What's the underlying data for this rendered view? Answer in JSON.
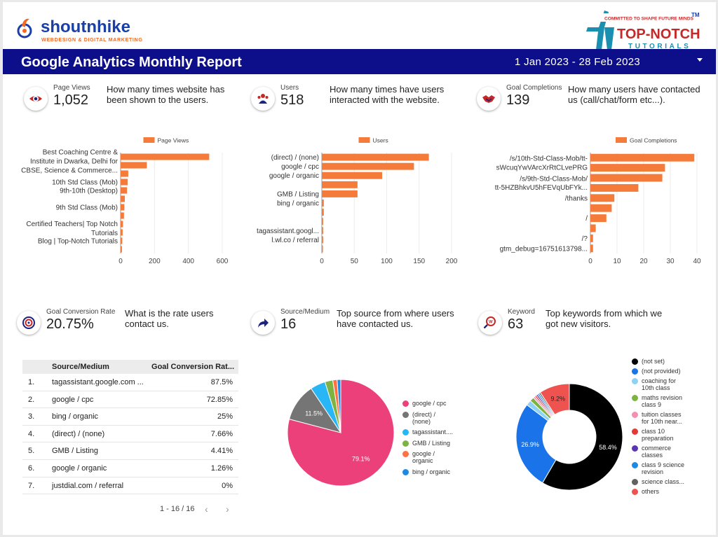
{
  "header": {
    "brand_left": "shoutnhike",
    "brand_left_tagline": "WEBDESIGN & DIGITAL MARKETING",
    "brand_right_tagline": "COMMITTED TO SHAPE FUTURE MINDS",
    "brand_right_tm": "TM",
    "brand_right_name": "TOP-NOTCH",
    "brand_right_sub": "TUTORIALS",
    "title": "Google Analytics Monthly Report",
    "date_range": "1 Jan 2023 - 28 Feb 2023"
  },
  "kpis": [
    {
      "label": "Page Views",
      "value": "1,052",
      "desc1": "How many times website has",
      "desc2": "been shown to the users.",
      "icon": "eye-icon"
    },
    {
      "label": "Users",
      "value": "518",
      "desc1": "How many times have users",
      "desc2": "interacted with the website.",
      "icon": "users-icon"
    },
    {
      "label": "Goal Completions",
      "value": "139",
      "desc1": "How many users have contacted",
      "desc2": "us (call/chat/form etc...).",
      "icon": "handshake-icon"
    },
    {
      "label": "Goal Conversion Rate",
      "value": "20.75%",
      "desc1": "What is the rate users",
      "desc2": "contact us.",
      "icon": "target-icon"
    },
    {
      "label": "Source/Medium",
      "value": "16",
      "desc1": "Top source from where users",
      "desc2": "have contacted us.",
      "icon": "share-arrow-icon"
    },
    {
      "label": "Keyword",
      "value": "63",
      "desc1": "Top keywords from which we",
      "desc2": "got new visitors.",
      "icon": "keyword-search-icon"
    }
  ],
  "colors": {
    "title_bar": "#0d0f8a",
    "bar": "#f47b3a",
    "brand_blue": "#1a3fa6",
    "brand_orange": "#f26a21"
  },
  "table": {
    "headers": [
      "Source/Medium",
      "Goal Conversion Rat..."
    ],
    "rows": [
      {
        "idx": "1.",
        "source": "tagassistant.google.com ...",
        "value": "87.5%"
      },
      {
        "idx": "2.",
        "source": "google / cpc",
        "value": "72.85%"
      },
      {
        "idx": "3.",
        "source": "bing / organic",
        "value": "25%"
      },
      {
        "idx": "4.",
        "source": "(direct) / (none)",
        "value": "7.66%"
      },
      {
        "idx": "5.",
        "source": "GMB / Listing",
        "value": "4.41%"
      },
      {
        "idx": "6.",
        "source": "google / organic",
        "value": "1.26%"
      },
      {
        "idx": "7.",
        "source": "justdial.com / referral",
        "value": "0%"
      }
    ],
    "pagination": "1 - 16 / 16",
    "prev": "‹",
    "next": "›"
  },
  "chart_data": [
    {
      "type": "bar",
      "orientation": "horizontal",
      "legend": "Page Views",
      "legend_position": "top",
      "categories": [
        "Best Coaching Centre & Institute in Dwarka, Delhi for CBSE, Science & Commerce...",
        "",
        "",
        "10th Std Class (Mob)",
        "9th-10th (Desktop)",
        "",
        "9th Std Class (Mob)",
        "",
        "Certified Teachers| Top Notch Tutorials",
        "",
        "Blog | Top-Notch Tutorials",
        ""
      ],
      "label_lines": [
        [
          "Best Coaching Centre &",
          0.0
        ],
        [
          "Institute in Dwarka, Delhi for",
          0.0
        ],
        [
          "CBSE, Science & Commerce...",
          0.0
        ],
        [
          "10th Std Class (Mob)",
          3.0
        ],
        [
          "9th-10th (Desktop)",
          4.0
        ],
        [
          "9th Std Class (Mob)",
          6.0
        ],
        [
          "Certified Teachers| Top Notch",
          8.0
        ],
        [
          "Tutorials",
          8.0
        ],
        [
          "Blog | Top-Notch Tutorials",
          10.0
        ]
      ],
      "values": [
        523,
        155,
        45,
        42,
        38,
        25,
        22,
        20,
        14,
        12,
        10,
        8
      ],
      "xlim": [
        0,
        600
      ],
      "xticks": [
        "0",
        "200",
        "400",
        "600"
      ],
      "grid": true
    },
    {
      "type": "bar",
      "orientation": "horizontal",
      "legend": "Users",
      "legend_position": "top",
      "categories": [
        "(direct) / (none)",
        "google / cpc",
        "google / organic",
        "",
        "GMB / Listing",
        "bing / organic",
        "",
        "",
        "tagassistant.googl...",
        "l.wl.co / referral",
        ""
      ],
      "values": [
        165,
        142,
        93,
        55,
        55,
        3,
        3,
        2,
        2,
        2,
        1
      ],
      "xlim": [
        0,
        200
      ],
      "xticks": [
        "0",
        "50",
        "100",
        "150",
        "200"
      ],
      "grid": true
    },
    {
      "type": "bar",
      "orientation": "horizontal",
      "legend": "Goal Completions",
      "legend_position": "top",
      "categories": [
        "/s/10th-Std-Class-Mob/tt-sWcuqYwVArcXrRtCLvePRG",
        "/s/9th-Std-Class-Mob/tt-5HZBhkvU5hFEVqUbFYk...",
        "",
        "",
        "/thanks",
        "",
        "/",
        "",
        "/?",
        "gtm_debug=16751613798..."
      ],
      "label_lines": [
        [
          "/s/10th-Std-Class-Mob/tt-",
          0.0
        ],
        [
          "sWcuqYwVArcXrRtCLvePRG",
          0.0
        ],
        [
          "/s/9th-Std-Class-Mob/",
          2.0
        ],
        [
          "tt-5HZBhkvU5hFEVqUbFYk...",
          2.0
        ],
        [
          "/thanks",
          4.0
        ],
        [
          "/",
          6.0
        ],
        [
          "/?",
          8.0
        ],
        [
          "gtm_debug=16751613798...",
          9.0
        ]
      ],
      "values": [
        39,
        28,
        27,
        18,
        9,
        8,
        6,
        2,
        1,
        1
      ],
      "xlim": [
        0,
        40
      ],
      "xticks": [
        "0",
        "10",
        "20",
        "30",
        "40"
      ],
      "grid": true
    },
    {
      "type": "pie",
      "labels": [
        "google / cpc",
        "(direct) / (none)",
        "tagassistant....",
        "GMB / Listing",
        "google / organic",
        "bing / organic"
      ],
      "legend_lines": [
        [
          "google / cpc"
        ],
        [
          "(direct) /",
          "(none)"
        ],
        [
          "tagassistant...."
        ],
        [
          "GMB / Listing"
        ],
        [
          "google /",
          "organic"
        ],
        [
          "bing / organic"
        ]
      ],
      "values": [
        79.1,
        11.5,
        4.6,
        2.4,
        1.3,
        1.1
      ],
      "slice_labels": [
        "79.1%",
        "11.5%",
        "",
        "",
        "",
        ""
      ],
      "colors": [
        "#ec407a",
        "#757575",
        "#29b6f6",
        "#7cb342",
        "#ff7043",
        "#1e88e5"
      ],
      "start_angle": 0
    },
    {
      "type": "pie",
      "donut": true,
      "labels": [
        "(not set)",
        "(not provided)",
        "coaching for 10th class",
        "maths revision class 9",
        "tuition classes for 10th near...",
        "class 10 preparation",
        "commerce classes",
        "class 9 science revision",
        "science class...",
        "others"
      ],
      "legend_lines": [
        [
          "(not set)"
        ],
        [
          "(not provided)"
        ],
        [
          "coaching for",
          "10th class"
        ],
        [
          "maths revision",
          "class 9"
        ],
        [
          "tuition classes",
          "for 10th near..."
        ],
        [
          "class 10",
          "preparation"
        ],
        [
          "commerce",
          "classes"
        ],
        [
          "class 9 science",
          "revision"
        ],
        [
          "science class..."
        ],
        [
          "others"
        ]
      ],
      "values": [
        58.4,
        26.9,
        1.6,
        1.3,
        0.6,
        0.5,
        0.5,
        0.5,
        0.5,
        9.2
      ],
      "slice_labels": [
        "58.4%",
        "26.9%",
        "",
        "",
        "",
        "",
        "",
        "",
        "",
        "9.2%"
      ],
      "colors": [
        "#000000",
        "#1a73e8",
        "#8fd3f4",
        "#7cb342",
        "#f48fb1",
        "#e53935",
        "#5e35b1",
        "#1e88e5",
        "#616161",
        "#ef5350"
      ],
      "start_angle": 0
    }
  ]
}
